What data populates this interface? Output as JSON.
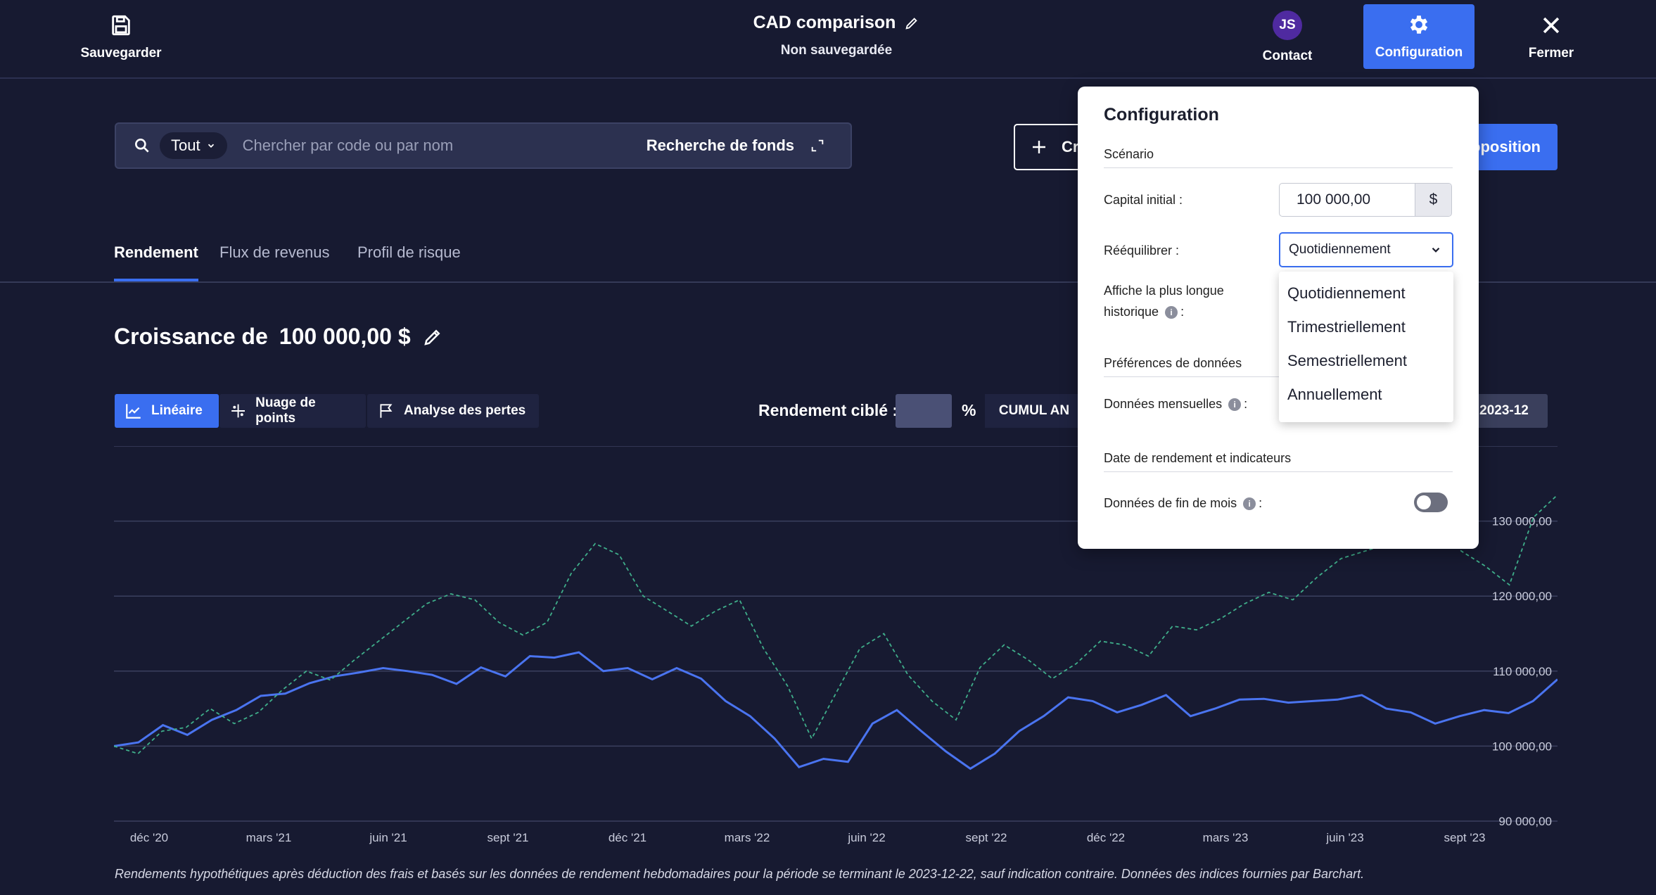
{
  "topbar": {
    "save_label": "Sauvegarder",
    "doc_title": "CAD comparison",
    "doc_status": "Non sauvegardée",
    "contact_initials": "JS",
    "contact_label": "Contact",
    "config_label": "Configuration",
    "close_label": "Fermer"
  },
  "search": {
    "filter_label": "Tout",
    "placeholder": "Chercher par code ou par nom",
    "fund_search_label": "Recherche de fonds"
  },
  "actions": {
    "create_label": "Cr",
    "proposal_label": "oposition"
  },
  "tabs": [
    "Rendement",
    "Flux de revenus",
    "Profil de risque"
  ],
  "growth": {
    "title_prefix": "Croissance de",
    "amount": "100 000,00 $"
  },
  "chart_types": [
    "Linéaire",
    "Nuage de points",
    "Analyse des pertes"
  ],
  "target": {
    "label": "Rendement ciblé :",
    "unit": "%"
  },
  "period": {
    "cumul_label": "CUMUL AN",
    "end_label": "2023-12"
  },
  "chart_data": {
    "type": "line",
    "x_ticks": [
      "déc '20",
      "mars '21",
      "juin '21",
      "sept '21",
      "déc '21",
      "mars '22",
      "juin '22",
      "sept '22",
      "déc '22",
      "mars '23",
      "juin '23",
      "sept '23"
    ],
    "y_ticks": [
      "90 000,00",
      "100 000,00",
      "110 000,00",
      "120 000,00",
      "130 000,00"
    ],
    "ylim": [
      90000,
      140000
    ],
    "x_range": [
      "2020-11",
      "2023-12"
    ],
    "grid": true,
    "series": [
      {
        "style": "solid",
        "color": "#4a74f0",
        "values": [
          100000,
          100500,
          102800,
          101500,
          103500,
          104800,
          106700,
          107000,
          108400,
          109300,
          109800,
          110400,
          110000,
          109500,
          108300,
          110500,
          109300,
          112000,
          111800,
          112500,
          110000,
          110400,
          108900,
          110400,
          109000,
          106000,
          104000,
          101000,
          97200,
          98300,
          97900,
          103000,
          104800,
          102000,
          99300,
          97000,
          99000,
          102000,
          104000,
          106500,
          106000,
          104500,
          105500,
          106800,
          104000,
          105000,
          106200,
          106300,
          105800,
          106000,
          106200,
          106800,
          105000,
          104500,
          103000,
          104000,
          104800,
          104400,
          106000,
          108900
        ]
      },
      {
        "style": "dashed",
        "color": "#3fae8a",
        "values": [
          100000,
          99000,
          102000,
          102500,
          105000,
          103000,
          104500,
          107500,
          110000,
          108800,
          111500,
          114000,
          116500,
          119000,
          120300,
          119500,
          116500,
          114800,
          116500,
          123000,
          127000,
          125500,
          120000,
          118000,
          116000,
          118000,
          119500,
          113000,
          108000,
          101000,
          107000,
          113000,
          115000,
          109500,
          106000,
          103500,
          110500,
          113500,
          111500,
          109000,
          111000,
          114000,
          113500,
          112000,
          116000,
          115500,
          117000,
          119000,
          120500,
          119500,
          122500,
          125000,
          126000,
          127000,
          131000,
          129500,
          126000,
          124000,
          121500,
          130500,
          133500
        ]
      }
    ]
  },
  "footnote": "Rendements hypothétiques après déduction des frais et basés sur les données de rendement hebdomadaires pour la période se terminant le 2023-12-22, sauf indication contraire. Données des indices fournies par Barchart.",
  "config": {
    "title": "Configuration",
    "scenario_section": "Scénario",
    "capital_label": "Capital initial :",
    "capital_value": "100 000,00",
    "capital_unit": "$",
    "rebalance_label": "Rééquilibrer :",
    "rebalance_value": "Quotidiennement",
    "longest_history_label_1": "Affiche la plus longue",
    "longest_history_label_2": "historique",
    "data_prefs_section": "Préférences de données",
    "monthly_data_label": "Données mensuelles",
    "date_section": "Date de rendement et indicateurs",
    "month_end_label": "Données de fin de mois",
    "month_end_enabled": false,
    "colon": ":"
  },
  "rebalance_options": [
    "Quotidiennement",
    "Trimestriellement",
    "Semestriellement",
    "Annuellement"
  ]
}
